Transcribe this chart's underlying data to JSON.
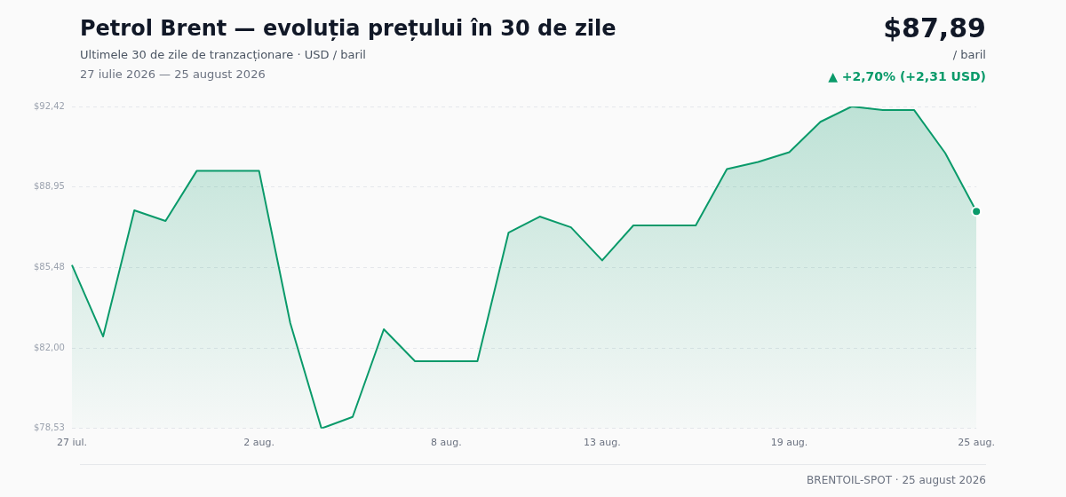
{
  "chart_data": {
    "type": "area",
    "title": "Petrol Brent — evoluția prețului în 30 de zile",
    "subtitle": "Ultimele 30 de zile de tranzacționare · USD / baril",
    "annotations": [
      "27 iulie 2026 — 25 august 2026",
      "$87,89",
      "/ baril",
      "▲ +2,70% (+2,31 USD)",
      "BRENTOIL-SPOT · 25 august 2026"
    ],
    "categories": [
      "27 iul.",
      null,
      null,
      null,
      null,
      null,
      "2 aug.",
      null,
      null,
      null,
      null,
      null,
      "8 aug.",
      null,
      null,
      null,
      null,
      "13 aug.",
      null,
      null,
      null,
      null,
      null,
      "19 aug.",
      null,
      null,
      null,
      null,
      null,
      "25 aug."
    ],
    "series": [
      {
        "color": "#0a9a6a",
        "values": [
          85.58,
          82.5,
          87.94,
          87.48,
          89.64,
          89.64,
          89.64,
          83.08,
          78.53,
          79.03,
          82.81,
          81.43,
          81.43,
          81.43,
          86.98,
          87.67,
          87.21,
          85.78,
          87.29,
          87.29,
          87.29,
          89.72,
          90.03,
          90.45,
          91.76,
          92.42,
          92.27,
          92.27,
          90.41,
          87.89
        ]
      }
    ],
    "ylim": [
      78.53,
      92.42
    ],
    "yticks": [
      {
        "value": 78.53,
        "label": "$78,53"
      },
      {
        "value": 82.0,
        "label": "$82,00"
      },
      {
        "value": 85.48,
        "label": "$85,48"
      },
      {
        "value": 88.95,
        "label": "$88,95"
      },
      {
        "value": 92.42,
        "label": "$92,42"
      }
    ],
    "grid": "y",
    "legend": false
  }
}
